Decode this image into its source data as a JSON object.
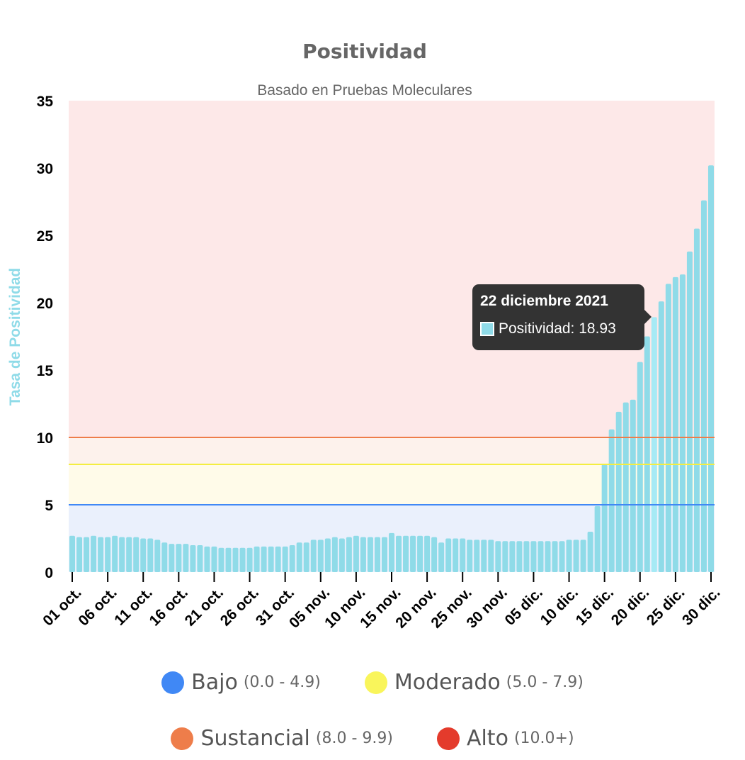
{
  "chart_data": {
    "type": "bar",
    "title": "Positividad",
    "subtitle": "Basado en Pruebas Moleculares",
    "ylabel": "Tasa de Positividad",
    "xlabel": "",
    "ylim": [
      0,
      35
    ],
    "yticks": [
      0,
      5,
      10,
      15,
      20,
      25,
      30,
      35
    ],
    "x_tick_labels": [
      "01 oct.",
      "06 oct.",
      "11 oct.",
      "16 oct.",
      "21 oct.",
      "26 oct.",
      "31 oct.",
      "05 nov.",
      "10 nov.",
      "15 nov.",
      "20 nov.",
      "25 nov.",
      "30 nov.",
      "05 dic.",
      "10 dic.",
      "15 dic.",
      "20 dic.",
      "25 dic.",
      "30 dic."
    ],
    "x_tick_every": 5,
    "bar_color": "#8fdbe8",
    "highlight_color": "#a6eaf5",
    "series": [
      {
        "name": "Positividad",
        "values": [
          2.7,
          2.6,
          2.6,
          2.7,
          2.6,
          2.6,
          2.7,
          2.6,
          2.6,
          2.6,
          2.5,
          2.5,
          2.4,
          2.2,
          2.1,
          2.1,
          2.1,
          2.0,
          2.0,
          1.9,
          1.9,
          1.8,
          1.8,
          1.8,
          1.8,
          1.8,
          1.9,
          1.9,
          1.9,
          1.9,
          1.9,
          2.0,
          2.2,
          2.2,
          2.4,
          2.4,
          2.5,
          2.6,
          2.5,
          2.6,
          2.7,
          2.6,
          2.6,
          2.6,
          2.6,
          2.9,
          2.7,
          2.7,
          2.7,
          2.7,
          2.7,
          2.6,
          2.2,
          2.5,
          2.5,
          2.5,
          2.4,
          2.4,
          2.4,
          2.4,
          2.3,
          2.3,
          2.3,
          2.3,
          2.3,
          2.3,
          2.3,
          2.3,
          2.3,
          2.3,
          2.4,
          2.4,
          2.4,
          3.0,
          4.9,
          8.0,
          10.6,
          11.9,
          12.6,
          12.8,
          15.6,
          17.5,
          18.93,
          20.1,
          21.4,
          21.9,
          22.1,
          23.8,
          25.5,
          27.6,
          30.2
        ]
      }
    ],
    "thresholds": [
      {
        "label": "Bajo",
        "range": "(0.0 - 4.9)",
        "from": 0,
        "to": 5,
        "color": "#4088f5",
        "band_color": "#eaf0fc"
      },
      {
        "label": "Moderado",
        "range": "(5.0 - 7.9)",
        "from": 5,
        "to": 8,
        "color": "#f9f55b",
        "band_color": "#fffbe9"
      },
      {
        "label": "Sustancial",
        "range": "(8.0 - 9.9)",
        "from": 8,
        "to": 10,
        "color": "#ee7d4a",
        "band_color": "#fdf2ec"
      },
      {
        "label": "Alto",
        "range": "(10.0+)",
        "from": 10,
        "to": 35,
        "color": "#e43b2c",
        "band_color": "#fde8e8"
      }
    ],
    "legend_position": "bottom",
    "grid": false,
    "tooltip": {
      "index": 82,
      "date": "22 diciembre 2021",
      "label": "Positividad: 18.93"
    }
  }
}
